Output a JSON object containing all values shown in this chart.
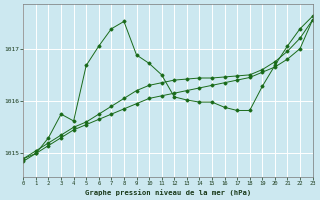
{
  "background_color": "#cce8f0",
  "grid_color": "#ffffff",
  "line_color": "#1a6b1a",
  "title": "Graphe pression niveau de la mer (hPa)",
  "xlim": [
    0,
    23
  ],
  "ylim": [
    1014.55,
    1017.85
  ],
  "yticks": [
    1015,
    1016,
    1017
  ],
  "xticks": [
    0,
    1,
    2,
    3,
    4,
    5,
    6,
    7,
    8,
    9,
    10,
    11,
    12,
    13,
    14,
    15,
    16,
    17,
    18,
    19,
    20,
    21,
    22,
    23
  ],
  "series_slow1": {
    "x": [
      0,
      1,
      2,
      3,
      4,
      5,
      6,
      7,
      8,
      9,
      10,
      11,
      12,
      13,
      14,
      15,
      16,
      17,
      18,
      19,
      20,
      21,
      22,
      23
    ],
    "y": [
      1014.9,
      1015.0,
      1015.15,
      1015.3,
      1015.45,
      1015.55,
      1015.65,
      1015.75,
      1015.85,
      1015.95,
      1016.05,
      1016.1,
      1016.15,
      1016.2,
      1016.25,
      1016.3,
      1016.35,
      1016.4,
      1016.45,
      1016.55,
      1016.65,
      1016.8,
      1017.0,
      1017.55
    ]
  },
  "series_slow2": {
    "x": [
      0,
      1,
      2,
      3,
      4,
      5,
      6,
      7,
      8,
      9,
      10,
      11,
      12,
      13,
      14,
      15,
      16,
      17,
      18,
      19,
      20,
      21,
      22,
      23
    ],
    "y": [
      1014.9,
      1015.05,
      1015.2,
      1015.35,
      1015.5,
      1015.6,
      1015.75,
      1015.9,
      1016.05,
      1016.2,
      1016.3,
      1016.35,
      1016.4,
      1016.42,
      1016.44,
      1016.44,
      1016.46,
      1016.48,
      1016.5,
      1016.6,
      1016.75,
      1016.95,
      1017.2,
      1017.55
    ]
  },
  "series_spiky": {
    "x": [
      0,
      1,
      2,
      3,
      4,
      5,
      6,
      7,
      8,
      9,
      10,
      11,
      12,
      13,
      14,
      15,
      16,
      17,
      18,
      19,
      20,
      21,
      22,
      23
    ],
    "y": [
      1014.85,
      1015.0,
      1015.3,
      1015.75,
      1015.62,
      1016.68,
      1017.05,
      1017.38,
      1017.52,
      1016.88,
      1016.72,
      1016.5,
      1016.08,
      1016.02,
      1015.98,
      1015.98,
      1015.88,
      1015.82,
      1015.82,
      1016.28,
      1016.68,
      1017.05,
      1017.38,
      1017.62
    ]
  }
}
